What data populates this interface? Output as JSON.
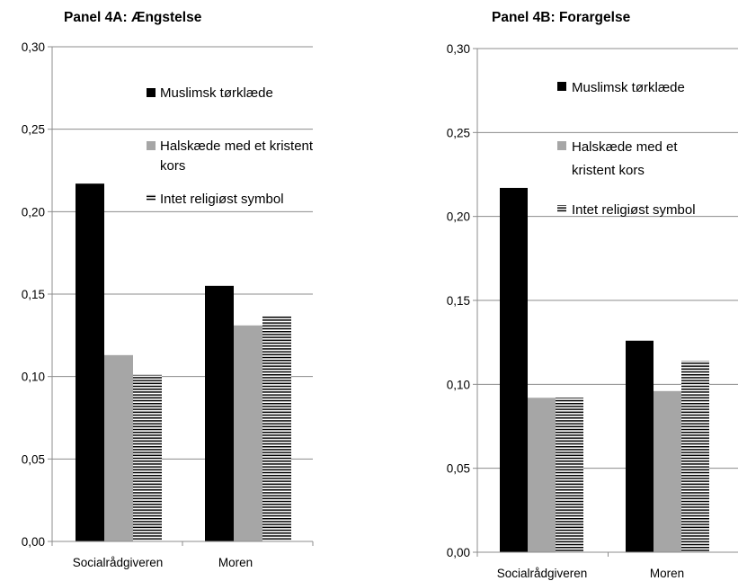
{
  "chart_data": [
    {
      "type": "bar",
      "title": "Panel 4A: Ængstelse",
      "categories": [
        "Socialrådgiveren",
        "Moren"
      ],
      "series": [
        {
          "name": "Muslimsk tørklæde",
          "values": [
            0.217,
            0.155
          ],
          "color": "#000000",
          "pattern": "solid"
        },
        {
          "name": "Halskæde med et kristent kors",
          "name_lines": [
            "Halskæde med et kristent",
            "kors"
          ],
          "values": [
            0.113,
            0.131
          ],
          "color": "#a6a6a6",
          "pattern": "solid"
        },
        {
          "name": "Intet religiøst symbol",
          "name_lines": [
            "Intet religiøst symbol"
          ],
          "values": [
            0.101,
            0.137
          ],
          "color": "#000000",
          "pattern": "horizontal-lines"
        }
      ],
      "ylim": [
        0,
        0.3
      ],
      "yticks": [
        "0,00",
        "0,05",
        "0,10",
        "0,15",
        "0,20",
        "0,25",
        "0,30"
      ],
      "grid": true,
      "legend_position": "top-right"
    },
    {
      "type": "bar",
      "title": "Panel 4B: Forargelse",
      "categories": [
        "Socialrådgiveren",
        "Moren"
      ],
      "series": [
        {
          "name": "Muslimsk tørklæde",
          "values": [
            0.217,
            0.126
          ],
          "color": "#000000",
          "pattern": "solid"
        },
        {
          "name": "Halskæde med et kristent kors",
          "name_lines": [
            "Halskæde med et",
            "kristent kors"
          ],
          "values": [
            0.092,
            0.096
          ],
          "color": "#a6a6a6",
          "pattern": "solid"
        },
        {
          "name": "Intet religiøst symbol",
          "name_lines": [
            "Intet religiøst symbol"
          ],
          "values": [
            0.092,
            0.114
          ],
          "color": "#000000",
          "pattern": "horizontal-lines"
        }
      ],
      "ylim": [
        0,
        0.3
      ],
      "yticks": [
        "0,00",
        "0,05",
        "0,10",
        "0,15",
        "0,20",
        "0,25",
        "0,30"
      ],
      "grid": true,
      "legend_position": "top-right"
    }
  ]
}
